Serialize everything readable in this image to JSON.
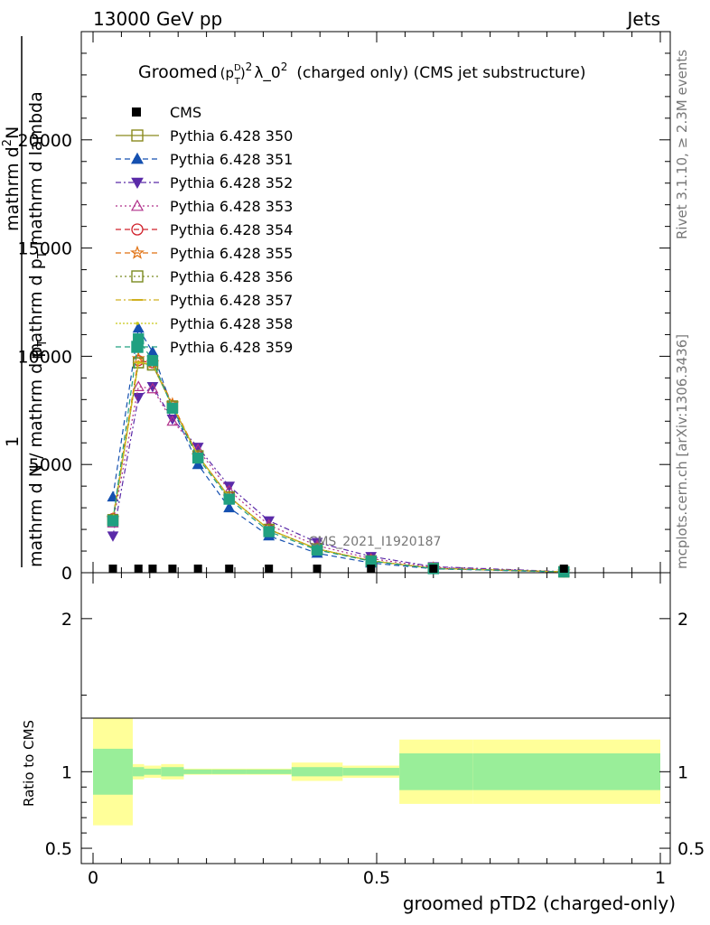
{
  "header": {
    "left": "13000 GeV pp",
    "right": "Jets"
  },
  "side_text": {
    "rivet": "Rivet 3.1.10, ≥ 2.3M events",
    "mcplots": "mcplots.cern.ch [arXiv:1306.3436]"
  },
  "watermark": "CMS_2021_I1920187",
  "chart_data": {
    "type": "line",
    "title": {
      "prefix": "Groomed",
      "p": "(p",
      "sup_d": "D",
      "sub_t": "T",
      "close": ")",
      "sup2": "2",
      "lambda": "λ_0",
      "sup2b": "2",
      "rest": "(charged only) (CMS jet substructure)"
    },
    "xlabel": "groomed pTD2 (charged-only)",
    "ylabel_main": {
      "numerator_one": "1",
      "denominator": "mathrm d N / mathrm d p",
      "denominator_sub": "T",
      "numerator": "mathrm d",
      "numerator_sup": "2",
      "numerator_N": "N",
      "denom2": "mathrm d p",
      "denom2_sub": "T",
      "denom2_rest": "mathrm d lambda"
    },
    "ylabel_ratio": "Ratio to CMS",
    "xlim": [
      0,
      1
    ],
    "ylim_main": [
      0,
      25000
    ],
    "ylim_ratio": [
      0.4,
      2.3
    ],
    "x_ticks": [
      "0",
      "0.5",
      "1"
    ],
    "y_ticks_main": [
      "0",
      "5000",
      "10000",
      "15000",
      "20000"
    ],
    "y_ticks_ratio": [
      "0.5",
      "1",
      "2"
    ],
    "x": [
      0.035,
      0.08,
      0.105,
      0.14,
      0.185,
      0.24,
      0.31,
      0.395,
      0.49,
      0.6,
      0.83
    ],
    "data": {
      "name": "CMS",
      "values": [
        0,
        0,
        0,
        0,
        0,
        0,
        0,
        0,
        0,
        0,
        0
      ],
      "ratio_band_green": [
        0.15,
        0.03,
        0.02,
        0.03,
        0.015,
        0.015,
        0.015,
        0.03,
        0.025,
        0.12,
        0.12
      ],
      "ratio_band_yellow": [
        0.35,
        0.05,
        0.04,
        0.05,
        0.02,
        0.02,
        0.02,
        0.06,
        0.04,
        0.21,
        0.21
      ],
      "bin_edges": [
        0.0,
        0.07,
        0.09,
        0.12,
        0.16,
        0.21,
        0.27,
        0.35,
        0.44,
        0.54,
        0.67,
        1.0
      ]
    },
    "series": [
      {
        "name": "Pythia 6.428 350",
        "color": "#8a8a1e",
        "dash": "",
        "marker": "square-open",
        "values": [
          2400,
          9700,
          9600,
          7700,
          5400,
          3500,
          2000,
          1100,
          550,
          200,
          40
        ]
      },
      {
        "name": "Pythia 6.428 351",
        "color": "#1550b0",
        "dash": "6,4",
        "marker": "triangle-up",
        "values": [
          3500,
          11300,
          10200,
          7600,
          5000,
          3000,
          1700,
          900,
          450,
          180,
          30
        ]
      },
      {
        "name": "Pythia 6.428 352",
        "color": "#5a2aa8",
        "dash": "6,3,2,3",
        "marker": "triangle-down",
        "values": [
          1700,
          8100,
          8600,
          7100,
          5800,
          4000,
          2400,
          1400,
          750,
          280,
          50
        ]
      },
      {
        "name": "Pythia 6.428 353",
        "color": "#b0308a",
        "dash": "2,3",
        "marker": "triangle-up-open",
        "values": [
          2300,
          8600,
          8500,
          7000,
          5700,
          3800,
          2200,
          1250,
          650,
          250,
          45
        ]
      },
      {
        "name": "Pythia 6.428 354",
        "color": "#d0202a",
        "dash": "6,4",
        "marker": "circle-open",
        "values": [
          2500,
          9800,
          9700,
          7700,
          5400,
          3500,
          2000,
          1100,
          550,
          200,
          40
        ]
      },
      {
        "name": "Pythia 6.428 355",
        "color": "#e07010",
        "dash": "6,4",
        "marker": "star-open",
        "values": [
          2500,
          9900,
          9700,
          7800,
          5400,
          3500,
          2000,
          1100,
          550,
          200,
          40
        ]
      },
      {
        "name": "Pythia 6.428 356",
        "color": "#7a8a20",
        "dash": "2,3",
        "marker": "square-open",
        "values": [
          2450,
          9700,
          9600,
          7700,
          5400,
          3500,
          2000,
          1100,
          550,
          200,
          40
        ]
      },
      {
        "name": "Pythia 6.428 357",
        "color": "#d0b020",
        "dash": "6,3,2,3",
        "marker": "dash",
        "values": [
          2450,
          9700,
          9650,
          7700,
          5400,
          3500,
          2000,
          1100,
          550,
          200,
          40
        ]
      },
      {
        "name": "Pythia 6.428 358",
        "color": "#c8c818",
        "dash": "2,2",
        "marker": "dot",
        "values": [
          2450,
          9700,
          9650,
          7700,
          5400,
          3500,
          2000,
          1100,
          550,
          200,
          40
        ]
      },
      {
        "name": "Pythia 6.428 359",
        "color": "#20a080",
        "dash": "6,4",
        "marker": "square-filled",
        "values": [
          2400,
          10800,
          9800,
          7600,
          5300,
          3400,
          1900,
          1050,
          530,
          190,
          38
        ]
      }
    ],
    "legend_placement": "top-left",
    "grid": false
  }
}
